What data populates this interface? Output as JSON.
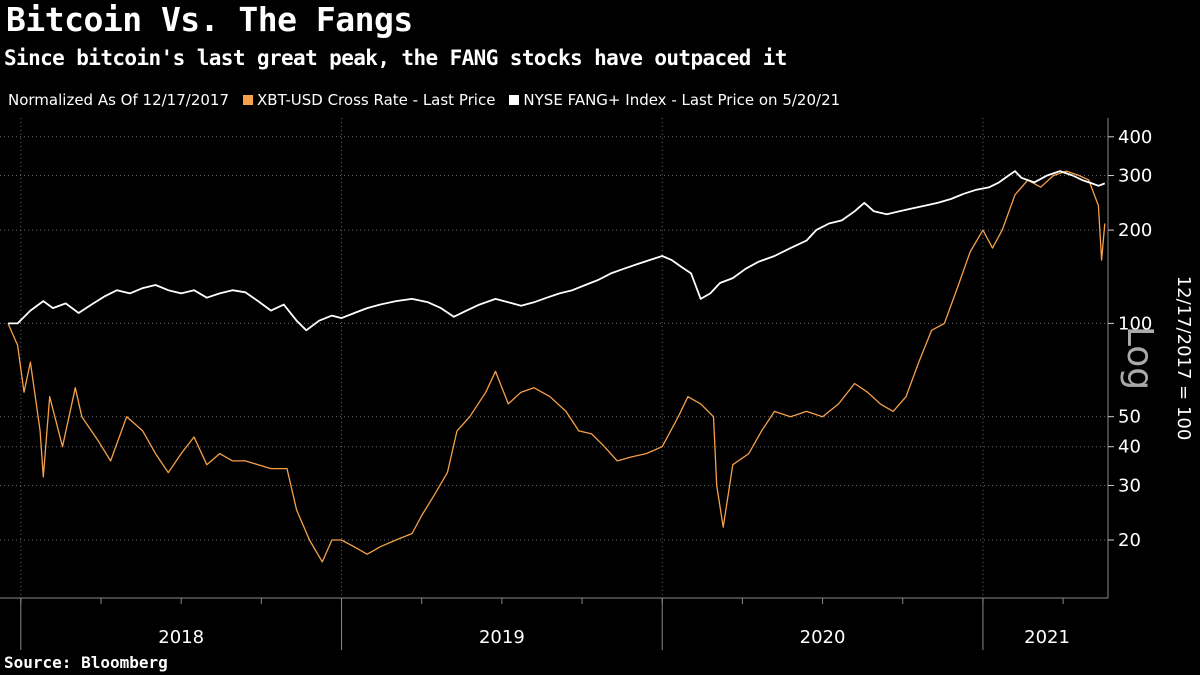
{
  "title": "Bitcoin Vs. The Fangs",
  "subtitle": "Since bitcoin's last great peak, the FANG stocks have outpaced it",
  "legend": {
    "normalized": "Normalized As Of 12/17/2017",
    "items": [
      {
        "label": "XBT-USD Cross Rate - Last Price",
        "color": "#f5a04a"
      },
      {
        "label": "NYSE FANG+ Index - Last Price on 5/20/21",
        "color": "#ffffff"
      }
    ]
  },
  "source": "Source: Bloomberg",
  "chart_data": {
    "type": "line",
    "title": "Bitcoin Vs. The Fangs",
    "yscale": "log",
    "ylabel": "12/17/2017 = 100",
    "ylabel_secondary": "Log",
    "ylim": [
      13,
      460
    ],
    "xlim": [
      2017.96,
      2021.39
    ],
    "yticks": [
      20,
      30,
      40,
      50,
      100,
      200,
      300,
      400
    ],
    "xticks": [
      {
        "label": "2018",
        "x": 2018.5
      },
      {
        "label": "2019",
        "x": 2019.5
      },
      {
        "label": "2020",
        "x": 2020.5
      },
      {
        "label": "2021",
        "x": 2021.2
      }
    ],
    "year_boundaries": [
      2018.0,
      2019.0,
      2020.0,
      2021.0
    ],
    "series": [
      {
        "name": "XBT-USD Cross Rate - Last Price",
        "color": "#f5a04a",
        "points": [
          [
            2017.96,
            100
          ],
          [
            2017.99,
            85
          ],
          [
            2018.01,
            60
          ],
          [
            2018.03,
            75
          ],
          [
            2018.06,
            45
          ],
          [
            2018.07,
            32
          ],
          [
            2018.09,
            58
          ],
          [
            2018.13,
            40
          ],
          [
            2018.17,
            62
          ],
          [
            2018.19,
            50
          ],
          [
            2018.24,
            42
          ],
          [
            2018.28,
            36
          ],
          [
            2018.33,
            50
          ],
          [
            2018.38,
            45
          ],
          [
            2018.42,
            38
          ],
          [
            2018.46,
            33
          ],
          [
            2018.5,
            38
          ],
          [
            2018.54,
            43
          ],
          [
            2018.58,
            35
          ],
          [
            2018.62,
            38
          ],
          [
            2018.66,
            36
          ],
          [
            2018.7,
            36
          ],
          [
            2018.74,
            35
          ],
          [
            2018.78,
            34
          ],
          [
            2018.83,
            34
          ],
          [
            2018.86,
            25
          ],
          [
            2018.9,
            20
          ],
          [
            2018.94,
            17
          ],
          [
            2018.97,
            20
          ],
          [
            2019.0,
            20
          ],
          [
            2019.04,
            19
          ],
          [
            2019.08,
            18
          ],
          [
            2019.12,
            19
          ],
          [
            2019.17,
            20
          ],
          [
            2019.22,
            21
          ],
          [
            2019.25,
            24
          ],
          [
            2019.29,
            28
          ],
          [
            2019.33,
            33
          ],
          [
            2019.36,
            45
          ],
          [
            2019.4,
            50
          ],
          [
            2019.45,
            60
          ],
          [
            2019.48,
            70
          ],
          [
            2019.52,
            55
          ],
          [
            2019.56,
            60
          ],
          [
            2019.6,
            62
          ],
          [
            2019.65,
            58
          ],
          [
            2019.7,
            52
          ],
          [
            2019.74,
            45
          ],
          [
            2019.78,
            44
          ],
          [
            2019.82,
            40
          ],
          [
            2019.86,
            36
          ],
          [
            2019.9,
            37
          ],
          [
            2019.95,
            38
          ],
          [
            2020.0,
            40
          ],
          [
            2020.05,
            50
          ],
          [
            2020.08,
            58
          ],
          [
            2020.12,
            55
          ],
          [
            2020.16,
            50
          ],
          [
            2020.17,
            30
          ],
          [
            2020.19,
            22
          ],
          [
            2020.22,
            35
          ],
          [
            2020.27,
            38
          ],
          [
            2020.31,
            45
          ],
          [
            2020.35,
            52
          ],
          [
            2020.4,
            50
          ],
          [
            2020.45,
            52
          ],
          [
            2020.5,
            50
          ],
          [
            2020.55,
            55
          ],
          [
            2020.6,
            64
          ],
          [
            2020.64,
            60
          ],
          [
            2020.68,
            55
          ],
          [
            2020.72,
            52
          ],
          [
            2020.76,
            58
          ],
          [
            2020.8,
            75
          ],
          [
            2020.84,
            95
          ],
          [
            2020.88,
            100
          ],
          [
            2020.92,
            130
          ],
          [
            2020.96,
            170
          ],
          [
            2021.0,
            200
          ],
          [
            2021.03,
            175
          ],
          [
            2021.06,
            200
          ],
          [
            2021.1,
            260
          ],
          [
            2021.14,
            290
          ],
          [
            2021.18,
            275
          ],
          [
            2021.22,
            300
          ],
          [
            2021.26,
            310
          ],
          [
            2021.3,
            300
          ],
          [
            2021.33,
            290
          ],
          [
            2021.36,
            240
          ],
          [
            2021.37,
            160
          ],
          [
            2021.38,
            210
          ]
        ]
      },
      {
        "name": "NYSE FANG+ Index - Last Price on 5/20/21",
        "color": "#ffffff",
        "points": [
          [
            2017.96,
            100
          ],
          [
            2017.99,
            100
          ],
          [
            2018.03,
            110
          ],
          [
            2018.07,
            118
          ],
          [
            2018.1,
            112
          ],
          [
            2018.14,
            116
          ],
          [
            2018.18,
            108
          ],
          [
            2018.22,
            115
          ],
          [
            2018.26,
            122
          ],
          [
            2018.3,
            128
          ],
          [
            2018.34,
            125
          ],
          [
            2018.38,
            130
          ],
          [
            2018.42,
            133
          ],
          [
            2018.46,
            128
          ],
          [
            2018.5,
            125
          ],
          [
            2018.54,
            128
          ],
          [
            2018.58,
            121
          ],
          [
            2018.62,
            125
          ],
          [
            2018.66,
            128
          ],
          [
            2018.7,
            126
          ],
          [
            2018.74,
            118
          ],
          [
            2018.78,
            110
          ],
          [
            2018.82,
            115
          ],
          [
            2018.86,
            102
          ],
          [
            2018.89,
            95
          ],
          [
            2018.93,
            102
          ],
          [
            2018.97,
            106
          ],
          [
            2019.0,
            104
          ],
          [
            2019.04,
            108
          ],
          [
            2019.08,
            112
          ],
          [
            2019.12,
            115
          ],
          [
            2019.17,
            118
          ],
          [
            2019.22,
            120
          ],
          [
            2019.27,
            117
          ],
          [
            2019.31,
            112
          ],
          [
            2019.35,
            105
          ],
          [
            2019.39,
            110
          ],
          [
            2019.43,
            115
          ],
          [
            2019.48,
            120
          ],
          [
            2019.52,
            117
          ],
          [
            2019.56,
            114
          ],
          [
            2019.6,
            117
          ],
          [
            2019.64,
            121
          ],
          [
            2019.68,
            125
          ],
          [
            2019.72,
            128
          ],
          [
            2019.76,
            133
          ],
          [
            2019.8,
            138
          ],
          [
            2019.84,
            145
          ],
          [
            2019.88,
            150
          ],
          [
            2019.92,
            155
          ],
          [
            2019.96,
            160
          ],
          [
            2020.0,
            165
          ],
          [
            2020.03,
            160
          ],
          [
            2020.06,
            152
          ],
          [
            2020.09,
            145
          ],
          [
            2020.12,
            120
          ],
          [
            2020.15,
            125
          ],
          [
            2020.18,
            135
          ],
          [
            2020.22,
            140
          ],
          [
            2020.26,
            150
          ],
          [
            2020.3,
            158
          ],
          [
            2020.35,
            165
          ],
          [
            2020.4,
            175
          ],
          [
            2020.45,
            185
          ],
          [
            2020.48,
            200
          ],
          [
            2020.52,
            210
          ],
          [
            2020.56,
            215
          ],
          [
            2020.6,
            230
          ],
          [
            2020.63,
            245
          ],
          [
            2020.66,
            230
          ],
          [
            2020.7,
            225
          ],
          [
            2020.74,
            230
          ],
          [
            2020.78,
            235
          ],
          [
            2020.82,
            240
          ],
          [
            2020.86,
            245
          ],
          [
            2020.9,
            252
          ],
          [
            2020.94,
            262
          ],
          [
            2020.98,
            270
          ],
          [
            2021.02,
            275
          ],
          [
            2021.05,
            285
          ],
          [
            2021.08,
            300
          ],
          [
            2021.1,
            310
          ],
          [
            2021.12,
            295
          ],
          [
            2021.16,
            285
          ],
          [
            2021.2,
            300
          ],
          [
            2021.24,
            310
          ],
          [
            2021.28,
            300
          ],
          [
            2021.31,
            290
          ],
          [
            2021.34,
            283
          ],
          [
            2021.36,
            278
          ],
          [
            2021.38,
            283
          ]
        ]
      }
    ]
  }
}
